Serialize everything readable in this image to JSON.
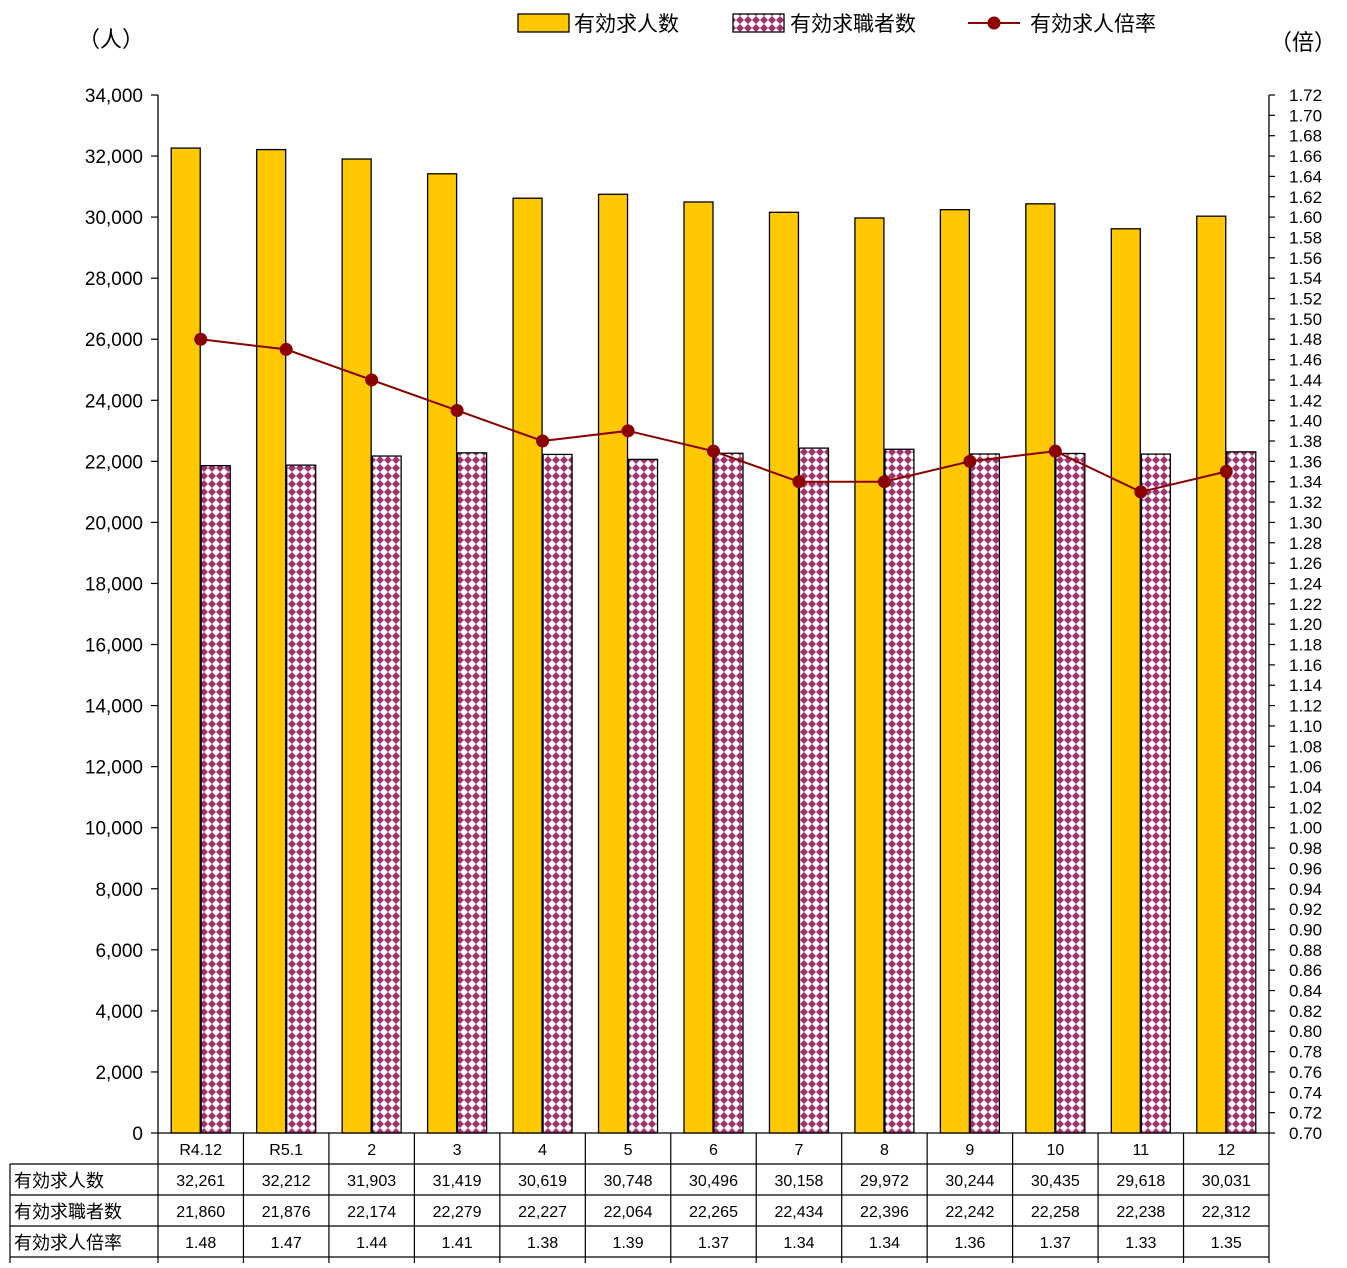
{
  "chart_data": {
    "type": "bar",
    "categories": [
      "R4.12",
      "R5.1",
      "2",
      "3",
      "4",
      "5",
      "6",
      "7",
      "8",
      "9",
      "10",
      "11",
      "12"
    ],
    "series": [
      {
        "name": "有効求人数",
        "kind": "bar",
        "axis": "left",
        "color": "#FFC800",
        "pattern": "solid",
        "values": [
          32261,
          32212,
          31903,
          31419,
          30619,
          30748,
          30496,
          30158,
          29972,
          30244,
          30435,
          29618,
          30031
        ]
      },
      {
        "name": "有効求職者数",
        "kind": "bar",
        "axis": "left",
        "color": "#A0306E",
        "pattern": "diamond",
        "values": [
          21860,
          21876,
          22174,
          22279,
          22227,
          22064,
          22265,
          22434,
          22396,
          22242,
          22258,
          22238,
          22312
        ]
      },
      {
        "name": "有効求人倍率",
        "kind": "line",
        "axis": "right",
        "color": "#8B0000",
        "values": [
          1.48,
          1.47,
          1.44,
          1.41,
          1.38,
          1.39,
          1.37,
          1.34,
          1.34,
          1.36,
          1.37,
          1.33,
          1.35
        ]
      }
    ],
    "left_axis": {
      "unit": "（人）",
      "min": 0,
      "max": 34000,
      "step": 2000
    },
    "right_axis": {
      "unit": "（倍）",
      "min": 0.7,
      "max": 1.72,
      "step": 0.02
    },
    "legend_position": "top",
    "data_table": true
  }
}
